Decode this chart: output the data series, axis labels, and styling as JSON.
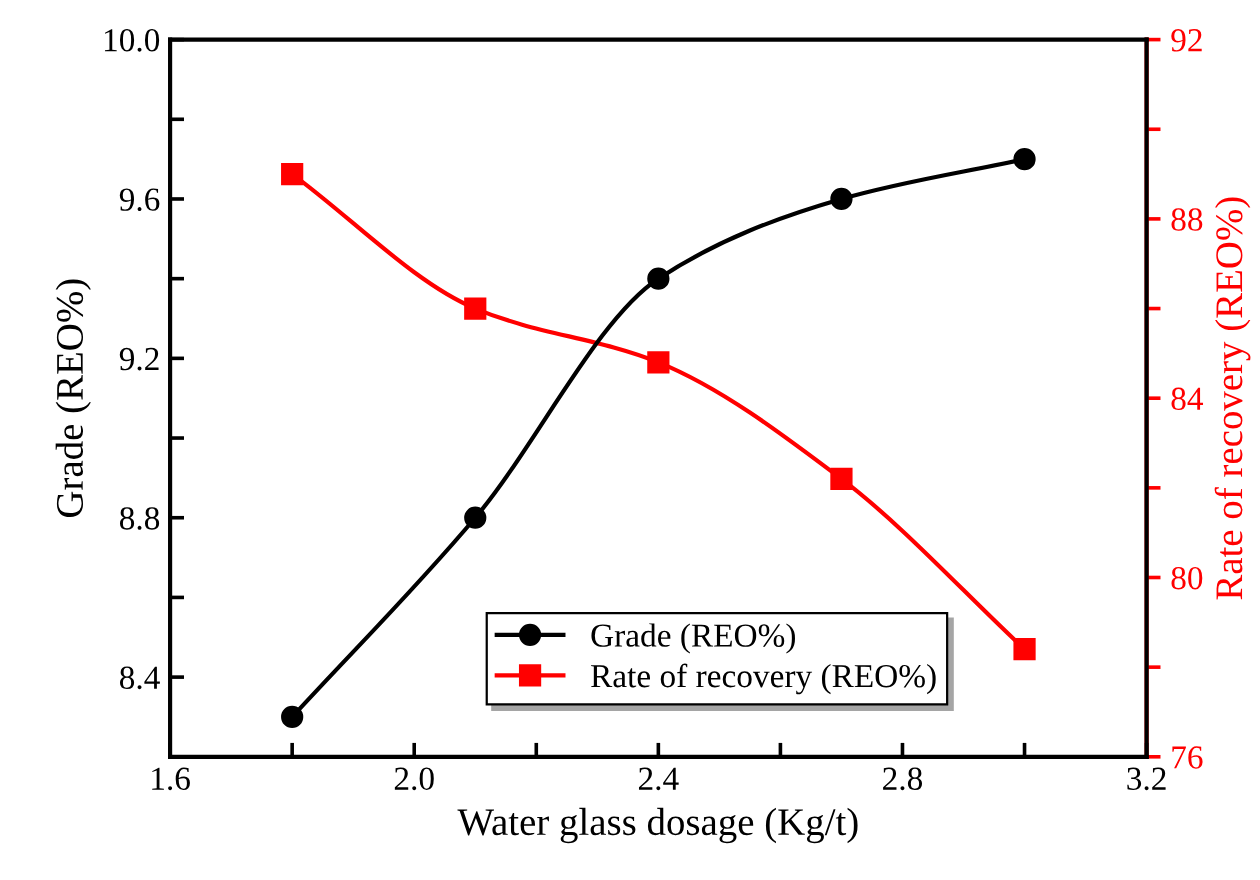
{
  "chart_data": {
    "type": "line",
    "xlabel": "Water glass dosage (Kg/t)",
    "ylabel": "Grade (REO%)",
    "y2label": "Rate of recovery (REO%)",
    "x": [
      1.8,
      2.1,
      2.4,
      2.7,
      3.0
    ],
    "series": [
      {
        "name": "Grade (REO%)",
        "color": "#000000",
        "marker": "circle",
        "values": [
          8.3,
          8.8,
          9.4,
          9.6,
          9.7
        ]
      },
      {
        "name": "Rate of recovery (REO%)",
        "color": "#ff0000",
        "marker": "square",
        "axis": "y2",
        "values": [
          89.0,
          86.0,
          84.8,
          82.2,
          78.4
        ]
      }
    ],
    "xlim": [
      1.6,
      3.2
    ],
    "xticks": [
      1.6,
      {
        "value": 1.8,
        "label": null
      },
      {
        "value": 2.0,
        "label": "2.0"
      },
      {
        "value": 2.2,
        "label": null
      },
      2.4,
      {
        "value": 2.6,
        "label": null
      },
      2.8,
      {
        "value": 3.0,
        "label": null
      },
      3.2
    ],
    "ylim": [
      8.2,
      10.0
    ],
    "yticks": [
      {
        "value": 8.2,
        "label": null
      },
      8.4,
      {
        "value": 8.6,
        "label": null
      },
      8.8,
      {
        "value": 9.0,
        "label": null
      },
      9.2,
      {
        "value": 9.4,
        "label": null
      },
      9.6,
      {
        "value": 9.8,
        "label": null
      },
      {
        "value": 10.0,
        "label": "10.0"
      }
    ],
    "y2lim": [
      76,
      92
    ],
    "y2ticks": [
      76,
      {
        "value": 78,
        "label": null
      },
      80,
      {
        "value": 82,
        "label": null
      },
      84,
      {
        "value": 86,
        "label": null
      },
      88,
      {
        "value": 90,
        "label": null
      },
      92
    ],
    "legend": "bottom",
    "grid": false,
    "line_style": "solid"
  }
}
